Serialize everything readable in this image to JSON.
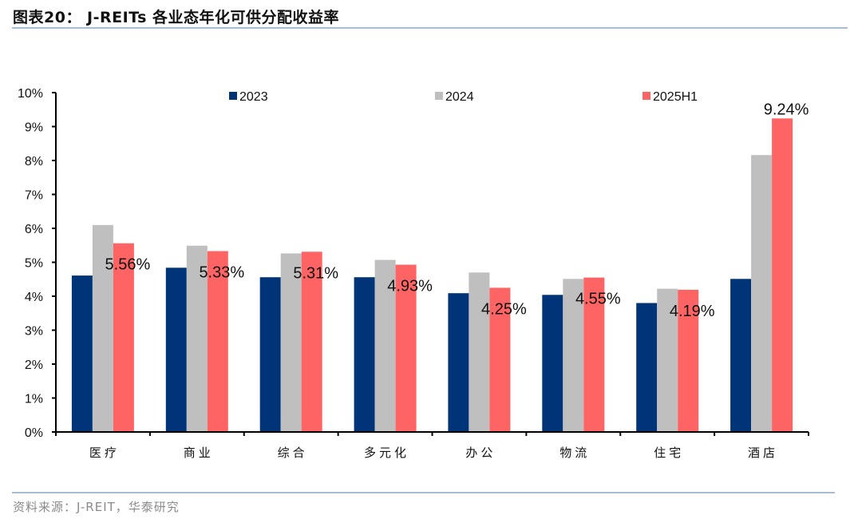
{
  "header": {
    "title": "图表20： J-REITs 各业态年化可供分配收益率"
  },
  "footer": {
    "source": "资料来源：J-REIT，华泰研究"
  },
  "chart_data": {
    "type": "bar",
    "title": "J-REITs 各业态年化可供分配收益率",
    "xlabel": "",
    "ylabel": "",
    "ylim": [
      0,
      10
    ],
    "y_ticks": [
      "0%",
      "1%",
      "2%",
      "3%",
      "4%",
      "5%",
      "6%",
      "7%",
      "8%",
      "9%",
      "10%"
    ],
    "grid": false,
    "legend_position": "top",
    "categories": [
      "医疗",
      "商业",
      "综合",
      "多元化",
      "办公",
      "物流",
      "住宅",
      "酒店"
    ],
    "series": [
      {
        "name": "2023",
        "color": "#003478",
        "values": [
          4.61,
          4.84,
          4.56,
          4.56,
          4.09,
          4.04,
          3.8,
          4.51
        ]
      },
      {
        "name": "2024",
        "color": "#bfbfbf",
        "values": [
          6.1,
          5.49,
          5.26,
          5.07,
          4.7,
          4.51,
          4.22,
          8.16
        ]
      },
      {
        "name": "2025H1",
        "color": "#ff6464",
        "values": [
          5.56,
          5.33,
          5.31,
          4.93,
          4.25,
          4.55,
          4.19,
          9.24
        ]
      }
    ],
    "data_labels": {
      "series": "2025H1",
      "texts": [
        "5.56%",
        "5.33%",
        "5.31%",
        "4.93%",
        "4.25%",
        "4.55%",
        "4.19%",
        "9.24%"
      ]
    }
  }
}
